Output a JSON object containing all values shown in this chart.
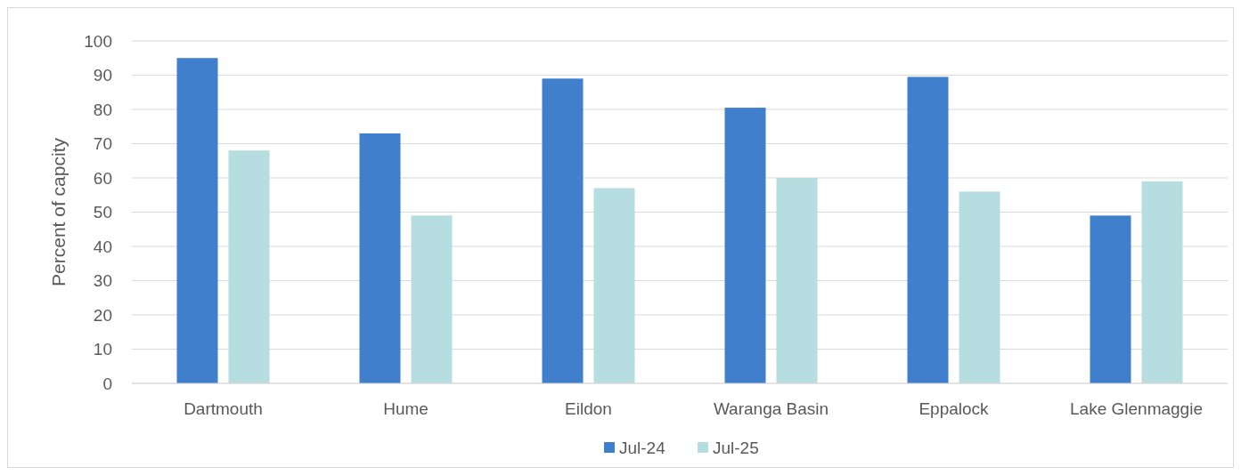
{
  "chart_data": {
    "type": "bar",
    "ylabel": "Percent of capcity",
    "categories": [
      "Dartmouth",
      "Hume",
      "Eildon",
      "Waranga Basin",
      "Eppalock",
      "Lake Glenmaggie"
    ],
    "series": [
      {
        "name": "Jul-24",
        "color": "#3f7fcb",
        "values": [
          95,
          73,
          89,
          80.5,
          89.5,
          49
        ]
      },
      {
        "name": "Jul-25",
        "color": "#b6dde0",
        "values": [
          68,
          49,
          57,
          60,
          56,
          59
        ]
      }
    ],
    "ylim": [
      0,
      100
    ],
    "yticks": [
      0,
      10,
      20,
      30,
      40,
      50,
      60,
      70,
      80,
      90,
      100
    ],
    "grid": "y",
    "legend": "bottom"
  }
}
